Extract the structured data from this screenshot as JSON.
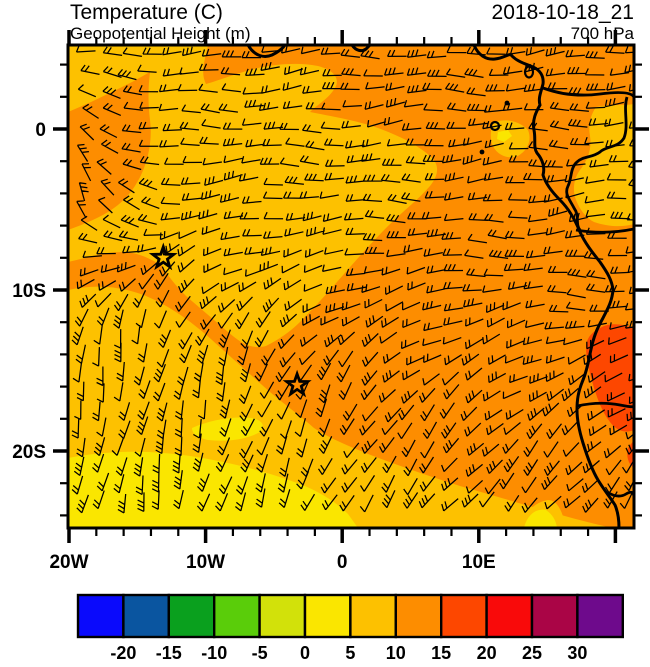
{
  "header": {
    "title": "Temperature (C)",
    "subtitle": "Geopotential Height (m)",
    "datetime": "2018-10-18_21",
    "level": "700 hPa"
  },
  "chart_data": {
    "type": "heatmap",
    "title": "Temperature (C)",
    "subtitle": "Geopotential Height (m)",
    "datetime": "2018-10-18_21",
    "level": "700 hPa",
    "units": "C",
    "lon_axis": {
      "range_deg": [
        -20,
        21.3
      ],
      "major_ticks": [
        {
          "label": "20W",
          "deg": -20
        },
        {
          "label": "10W",
          "deg": -10
        },
        {
          "label": "0",
          "deg": 0
        },
        {
          "label": "10E",
          "deg": 10
        }
      ],
      "minor_tick_interval_deg": 2
    },
    "lat_axis": {
      "range_deg": [
        5.2,
        -24.8
      ],
      "major_ticks": [
        {
          "label": "0",
          "deg": 0
        },
        {
          "label": "10S",
          "deg": -10
        },
        {
          "label": "20S",
          "deg": -20
        }
      ],
      "minor_tick_interval_deg": 2
    },
    "colorbar": {
      "boundary_labels": [
        "-20",
        "-15",
        "-10",
        "-5",
        "0",
        "5",
        "10",
        "15",
        "20",
        "25",
        "30"
      ],
      "cell_colors": [
        "#0a0afc",
        "#0a55a0",
        "#0aa01e",
        "#5acd0a",
        "#d2e10a",
        "#fae600",
        "#fdc100",
        "#fd8d00",
        "#fd4700",
        "#f90a0a",
        "#aa0546",
        "#6e0a8c"
      ]
    },
    "field_regions": [
      {
        "temp_band_c": "10 to 15",
        "color": "#fd8d00",
        "where": "northern half of domain, eastern ocean and most land"
      },
      {
        "temp_band_c": "5 to 10",
        "color": "#fdc100",
        "where": "central/south-central band, top-left wedge, patches near coast"
      },
      {
        "temp_band_c": "0 to 5",
        "color": "#fae600",
        "where": "south-west corner of domain"
      },
      {
        "temp_band_c": "15 to 20",
        "color": "#fd4700",
        "where": "coastal Angola patch near right edge around 13S-18S"
      }
    ],
    "markers": [
      {
        "shape": "star",
        "lon": -13.1,
        "lat": -8.0
      },
      {
        "shape": "star",
        "lon": -3.3,
        "lat": -15.9
      }
    ],
    "wind": {
      "symbol": "barbs",
      "coverage": "regular grid over whole map"
    }
  }
}
